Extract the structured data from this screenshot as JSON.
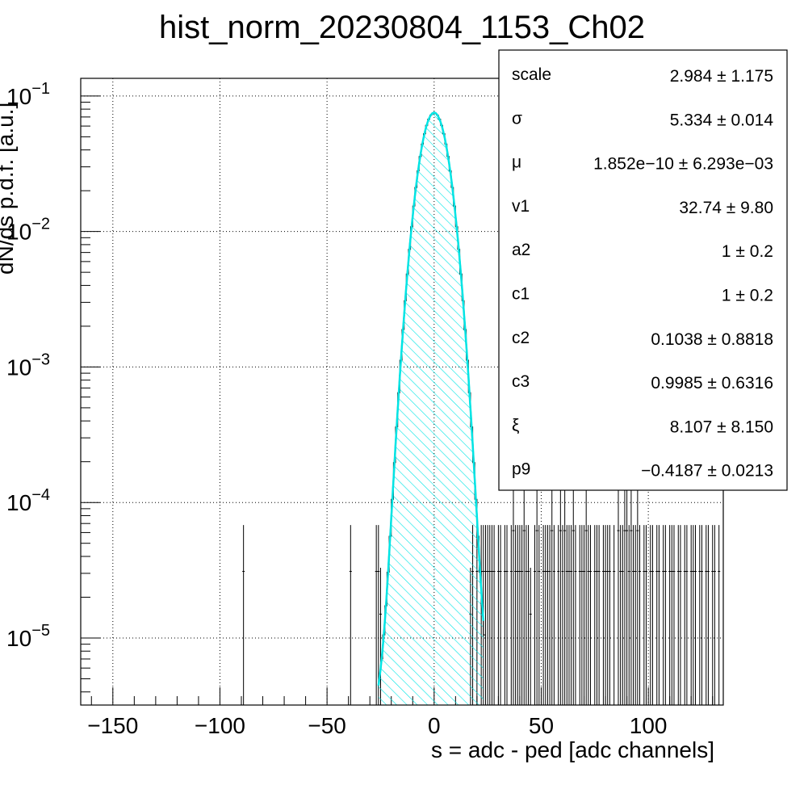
{
  "chart_data": {
    "type": "histogram",
    "title": "hist_norm_20230804_1153_Ch02",
    "xlabel": "s = adc - ped [adc channels]",
    "ylabel": "dN/ds p.d.f. [a.u.]",
    "xlim": [
      -165,
      135
    ],
    "ylim": [
      3.2e-06,
      0.135
    ],
    "yscale": "log",
    "grid": true,
    "x_ticks": [
      -150,
      -100,
      -50,
      0,
      50,
      100
    ],
    "x_tick_labels": [
      "−150",
      "−100",
      "−50",
      "0",
      "50",
      "100"
    ],
    "y_ticks": [
      1e-05,
      0.0001,
      0.001,
      0.01,
      0.1
    ],
    "y_tick_labels": [
      {
        "base": "10",
        "exp": "−5"
      },
      {
        "base": "10",
        "exp": "−4"
      },
      {
        "base": "10",
        "exp": "−3"
      },
      {
        "base": "10",
        "exp": "−2"
      },
      {
        "base": "10",
        "exp": "−1"
      }
    ],
    "peak": {
      "x": 0,
      "y": 0.075,
      "sigma": 5.334
    },
    "series": [
      {
        "type": "filled-hatched",
        "color": "#00e5e5"
      },
      {
        "type": "line",
        "color": "#ff0000"
      },
      {
        "type": "line",
        "color": "#00e5e5"
      }
    ],
    "stats_box": {
      "position": "top-right",
      "rows": [
        {
          "key": "scale",
          "value": "2.984 ± 1.175"
        },
        {
          "key": "σ",
          "value": "5.334 ± 0.014"
        },
        {
          "key": "μ",
          "value": "1.852e−10 ± 6.293e−03"
        },
        {
          "key": "v1",
          "value": "32.74 ± 9.80"
        },
        {
          "key": "a2",
          "value": "1 ± 0.2"
        },
        {
          "key": "c1",
          "value": "1 ± 0.2"
        },
        {
          "key": "c2",
          "value": "0.1038 ± 0.8818"
        },
        {
          "key": "c3",
          "value": "0.9985 ± 0.6316"
        },
        {
          "key": "ξ",
          "value": "8.107 ± 8.150"
        },
        {
          "key": "p9",
          "value": "−0.4187 ± 0.0213"
        }
      ]
    },
    "sparse_points": [
      {
        "x": -89,
        "y": 3.1e-05
      },
      {
        "x": -39,
        "y": 3.1e-05
      },
      {
        "x": -27,
        "y": 3.1e-05
      },
      {
        "x": -26,
        "y": 3.1e-05
      },
      {
        "x": -25,
        "y": 1.5e-05
      },
      {
        "x": 17,
        "y": 1.5e-05
      },
      {
        "x": 18,
        "y": 3.1e-05
      },
      {
        "x": 20,
        "y": 3.1e-05
      },
      {
        "x": 22,
        "y": 3.1e-05
      },
      {
        "x": 23,
        "y": 3.1e-05
      },
      {
        "x": 24,
        "y": 3.1e-05
      },
      {
        "x": 25,
        "y": 3.1e-05
      },
      {
        "x": 26,
        "y": 3.1e-05
      },
      {
        "x": 27,
        "y": 3.1e-05
      },
      {
        "x": 28,
        "y": 3.1e-05
      },
      {
        "x": 30,
        "y": 3.1e-05
      },
      {
        "x": 31,
        "y": 3.1e-05
      },
      {
        "x": 33,
        "y": 3.1e-05
      },
      {
        "x": 34,
        "y": 3.1e-05
      },
      {
        "x": 36,
        "y": 3.1e-05
      },
      {
        "x": 37,
        "y": 6.2e-05
      },
      {
        "x": 38,
        "y": 3.1e-05
      },
      {
        "x": 39,
        "y": 3.1e-05
      },
      {
        "x": 40,
        "y": 3.1e-05
      },
      {
        "x": 41,
        "y": 3.1e-05
      },
      {
        "x": 42,
        "y": 6.2e-05
      },
      {
        "x": 43,
        "y": 3.1e-05
      },
      {
        "x": 44,
        "y": 3.1e-05
      },
      {
        "x": 45,
        "y": 1.5e-05
      },
      {
        "x": 47,
        "y": 3.1e-05
      },
      {
        "x": 48,
        "y": 6.2e-05
      },
      {
        "x": 49,
        "y": 3.1e-05
      },
      {
        "x": 51,
        "y": 3.1e-05
      },
      {
        "x": 52,
        "y": 3.1e-05
      },
      {
        "x": 53,
        "y": 3.1e-05
      },
      {
        "x": 54,
        "y": 3.1e-05
      },
      {
        "x": 55,
        "y": 6.2e-05
      },
      {
        "x": 56,
        "y": 3.1e-05
      },
      {
        "x": 58,
        "y": 3.1e-05
      },
      {
        "x": 59,
        "y": 6.2e-05
      },
      {
        "x": 60,
        "y": 3.1e-05
      },
      {
        "x": 61,
        "y": 6.2e-05
      },
      {
        "x": 62,
        "y": 3.1e-05
      },
      {
        "x": 63,
        "y": 3.1e-05
      },
      {
        "x": 64,
        "y": 3.1e-05
      },
      {
        "x": 65,
        "y": 6.2e-05
      },
      {
        "x": 66,
        "y": 3.1e-05
      },
      {
        "x": 68,
        "y": 3.1e-05
      },
      {
        "x": 69,
        "y": 3.1e-05
      },
      {
        "x": 70,
        "y": 3.1e-05
      },
      {
        "x": 71,
        "y": 6.2e-05
      },
      {
        "x": 72,
        "y": 3.1e-05
      },
      {
        "x": 73,
        "y": 3.1e-05
      },
      {
        "x": 75,
        "y": 3.1e-05
      },
      {
        "x": 76,
        "y": 3.1e-05
      },
      {
        "x": 77,
        "y": 3.1e-05
      },
      {
        "x": 79,
        "y": 3.1e-05
      },
      {
        "x": 80,
        "y": 3.1e-05
      },
      {
        "x": 81,
        "y": 3.1e-05
      },
      {
        "x": 82,
        "y": 3.1e-05
      },
      {
        "x": 84,
        "y": 3.1e-05
      },
      {
        "x": 86,
        "y": 6.2e-05
      },
      {
        "x": 87,
        "y": 3.1e-05
      },
      {
        "x": 88,
        "y": 3.1e-05
      },
      {
        "x": 89,
        "y": 6.2e-05
      },
      {
        "x": 90,
        "y": 6.2e-05
      },
      {
        "x": 91,
        "y": 3.1e-05
      },
      {
        "x": 92,
        "y": 6.2e-05
      },
      {
        "x": 93,
        "y": 3.1e-05
      },
      {
        "x": 94,
        "y": 3.1e-05
      },
      {
        "x": 95,
        "y": 6.2e-05
      },
      {
        "x": 96,
        "y": 3.1e-05
      },
      {
        "x": 98,
        "y": 3.1e-05
      },
      {
        "x": 99,
        "y": 3.1e-05
      },
      {
        "x": 101,
        "y": 3.1e-05
      },
      {
        "x": 102,
        "y": 3.1e-05
      },
      {
        "x": 104,
        "y": 3.1e-05
      },
      {
        "x": 105,
        "y": 3.1e-05
      },
      {
        "x": 107,
        "y": 3.1e-05
      },
      {
        "x": 108,
        "y": 3.1e-05
      },
      {
        "x": 110,
        "y": 3.1e-05
      },
      {
        "x": 111,
        "y": 3.1e-05
      },
      {
        "x": 112,
        "y": 3.1e-05
      },
      {
        "x": 114,
        "y": 3.1e-05
      },
      {
        "x": 115,
        "y": 3.1e-05
      },
      {
        "x": 117,
        "y": 3.1e-05
      },
      {
        "x": 118,
        "y": 3.1e-05
      },
      {
        "x": 120,
        "y": 3.1e-05
      },
      {
        "x": 121,
        "y": 3.1e-05
      },
      {
        "x": 122,
        "y": 3.1e-05
      },
      {
        "x": 124,
        "y": 3.1e-05
      },
      {
        "x": 125,
        "y": 3.1e-05
      },
      {
        "x": 127,
        "y": 3.1e-05
      },
      {
        "x": 128,
        "y": 3.1e-05
      },
      {
        "x": 130,
        "y": 3.1e-05
      },
      {
        "x": 131,
        "y": 3.1e-05
      },
      {
        "x": 133,
        "y": 3.1e-05
      }
    ]
  }
}
